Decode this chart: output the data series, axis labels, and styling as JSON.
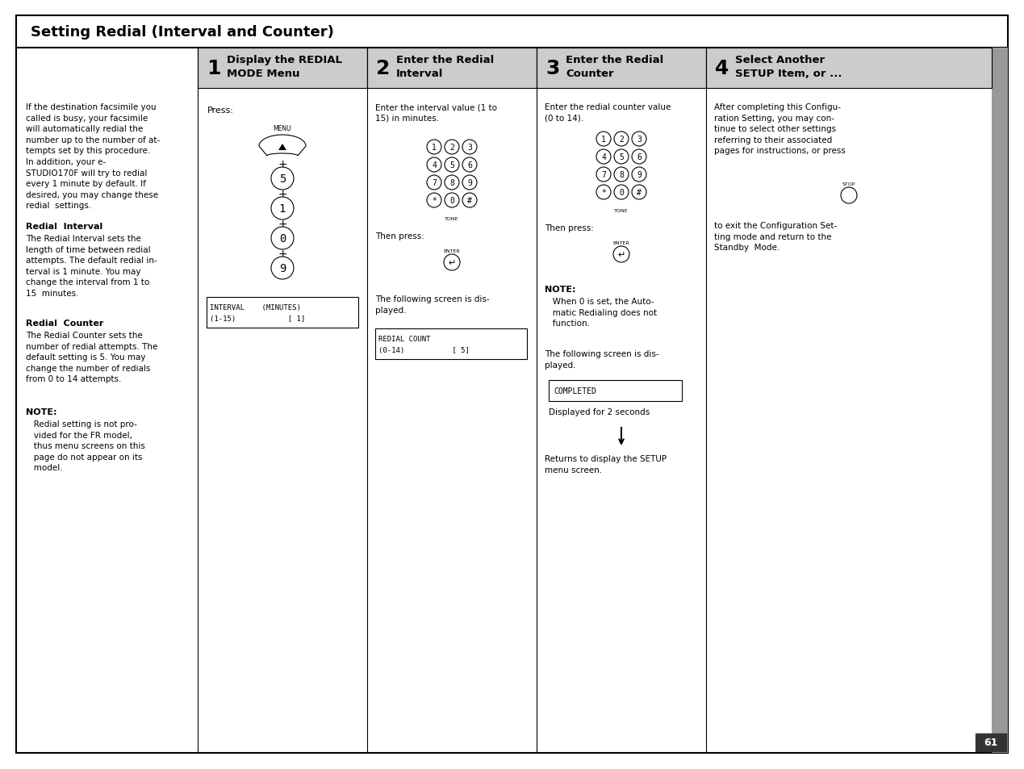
{
  "title": "Setting Redial (Interval and Counter)",
  "page_number": "61",
  "background_color": "#ffffff",
  "border_color": "#000000",
  "left_column": {
    "intro_text": "If the destination facsimile you\ncalled is busy, your facsimile\nwill automatically redial the\nnumber up to the number of at-\ntempts set by this procedure.\nIn addition, your e-\nSTUDIO170F will try to redial\nevery 1 minute by default. If\ndesired, you may change these\nredial  settings.",
    "redial_interval_title": "Redial  Interval",
    "redial_interval_text": "The Redial Interval sets the\nlength of time between redial\nattempts. The default redial in-\nterval is 1 minute. You may\nchange the interval from 1 to\n15  minutes.",
    "redial_counter_title": "Redial  Counter",
    "redial_counter_text": "The Redial Counter sets the\nnumber of redial attempts. The\ndefault setting is 5. You may\nchange the number of redials\nfrom 0 to 14 attempts.",
    "note_title": "NOTE:",
    "note_text": "   Redial setting is not pro-\n   vided for the FR model,\n   thus menu screens on this\n   page do not appear on its\n   model."
  },
  "step1": {
    "number": "1",
    "title": "Display the REDIAL\nMODE Menu",
    "press_text": "Press:",
    "buttons": [
      "5",
      "1",
      "0",
      "9"
    ],
    "screen_line1": "INTERVAL    (MINUTES)",
    "screen_line2": "(1-15)            [ 1]"
  },
  "step2": {
    "number": "2",
    "title": "Enter the Redial\nInterval",
    "text1": "Enter the interval value (1 to\n15) in minutes.",
    "then_press": "Then press:",
    "text2": "The following screen is dis-\nplayed.",
    "screen_line1": "REDIAL COUNT",
    "screen_line2": "(0-14)           [ 5]"
  },
  "step3": {
    "number": "3",
    "title": "Enter the Redial\nCounter",
    "text1": "Enter the redial counter value\n(0 to 14).",
    "then_press": "Then press:",
    "note_title": "NOTE:",
    "note_text": "   When 0 is set, the Auto-\n   matic Redialing does not\n   function.",
    "text2": "The following screen is dis-\nplayed.",
    "completed_text": "COMPLETED",
    "displayed_text": "Displayed for 2 seconds",
    "returns_text": "Returns to display the SETUP\nmenu screen."
  },
  "step4": {
    "number": "4",
    "title": "Select Another\nSETUP Item, or ...",
    "text1": "After completing this Configu-\nration Setting, you may con-\ntinue to select other settings\nreferring to their associated\npages for instructions, or press",
    "text2": "to exit the Configuration Set-\nting mode and return to the\nStandby  Mode."
  }
}
